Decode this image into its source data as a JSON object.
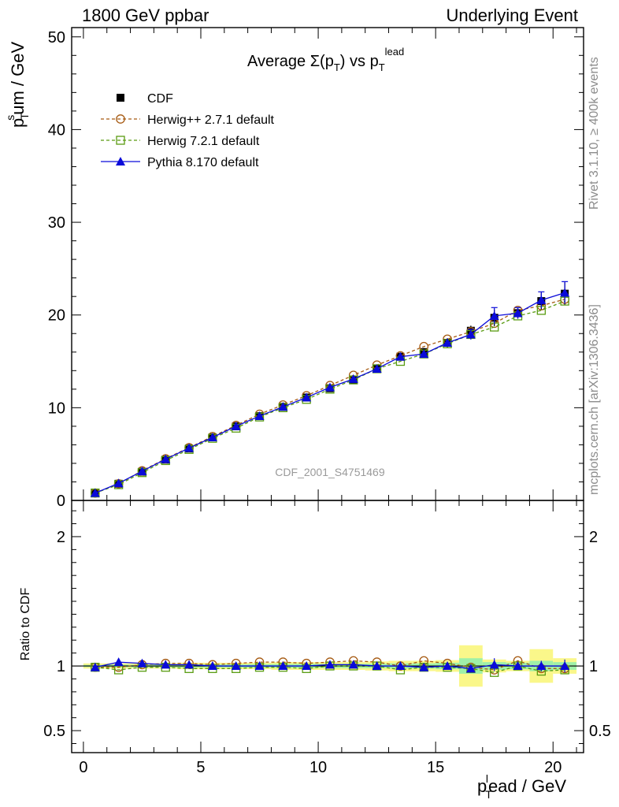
{
  "header": {
    "left": "1800 GeV ppbar",
    "right": "Underlying Event"
  },
  "side_labels": {
    "rivet": "Rivet 3.1.10, ≥ 400k events",
    "mcplots": "mcplots.cern.ch [arXiv:1306.3436]"
  },
  "chart_data": [
    {
      "type": "line",
      "title_main": "Average Σ(p",
      "title_sub": "T",
      "title_mid": ") vs p",
      "title_sub2": "T",
      "title_sup": "lead",
      "ylabel": "p_T^sum / GeV",
      "xlim": [
        -0.5,
        21.3
      ],
      "ylim": [
        0,
        51
      ],
      "yticks": [
        0,
        10,
        20,
        30,
        40,
        50
      ],
      "watermark": "CDF_2001_S4751469",
      "legend_position": "top-left",
      "x": [
        0.5,
        1.5,
        2.5,
        3.5,
        4.5,
        5.5,
        6.5,
        7.5,
        8.5,
        9.5,
        10.5,
        11.5,
        12.5,
        13.5,
        14.5,
        15.5,
        16.5,
        17.5,
        18.5,
        19.5,
        20.5
      ],
      "series": [
        {
          "name": "CDF",
          "color": "#000000",
          "marker": "square-filled",
          "values": [
            0.8,
            1.8,
            3.1,
            4.4,
            5.6,
            6.8,
            8.0,
            9.1,
            10.1,
            11.1,
            12.1,
            13.0,
            14.2,
            15.5,
            16.0,
            17.0,
            18.3,
            19.7,
            20.2,
            21.5,
            22.3
          ],
          "errors": [
            0.05,
            0.08,
            0.1,
            0.12,
            0.14,
            0.16,
            0.18,
            0.2,
            0.22,
            0.24,
            0.28,
            0.3,
            0.35,
            0.4,
            0.45,
            0.5,
            0.55,
            0.9,
            0.6,
            0.9,
            1.2
          ]
        },
        {
          "name": "Herwig++ 2.7.1 default",
          "color": "#a65a12",
          "marker": "circle-open",
          "dash": true,
          "values": [
            0.8,
            1.8,
            3.2,
            4.5,
            5.7,
            6.9,
            8.1,
            9.3,
            10.3,
            11.3,
            12.4,
            13.5,
            14.6,
            15.6,
            16.6,
            17.4,
            18.2,
            19.1,
            20.5,
            21.0,
            21.7
          ]
        },
        {
          "name": "Herwig 7.2.1 default",
          "color": "#5a9c12",
          "marker": "square-open",
          "dash": true,
          "values": [
            0.8,
            1.7,
            3.0,
            4.3,
            5.5,
            6.7,
            7.8,
            9.0,
            10.0,
            10.9,
            12.0,
            13.0,
            14.2,
            15.0,
            15.8,
            16.9,
            17.9,
            18.7,
            19.9,
            20.5,
            21.5
          ]
        },
        {
          "name": "Pythia 8.170 default",
          "color": "#0a0ad9",
          "marker": "triangle-filled",
          "values": [
            0.8,
            1.85,
            3.15,
            4.45,
            5.65,
            6.8,
            8.0,
            9.1,
            10.1,
            11.1,
            12.2,
            13.1,
            14.2,
            15.5,
            15.8,
            17.0,
            17.9,
            19.9,
            20.2,
            21.6,
            22.4
          ]
        }
      ]
    },
    {
      "type": "line",
      "ylabel": "Ratio to CDF",
      "xlabel": "p_T^lead / GeV",
      "xlim": [
        -0.5,
        21.3
      ],
      "ylim": [
        0.33,
        2.28
      ],
      "yticks": [
        0.5,
        1,
        2
      ],
      "xticks": [
        0,
        5,
        10,
        15,
        20
      ],
      "band_inner_color": "#9ff0a8",
      "band_outer_color": "#faf78a",
      "band_inner": [
        0.008,
        0.01,
        0.01,
        0.01,
        0.012,
        0.012,
        0.012,
        0.014,
        0.015,
        0.016,
        0.015,
        0.016,
        0.017,
        0.02,
        0.02,
        0.025,
        0.06,
        0.03,
        0.025,
        0.04,
        0.03
      ],
      "band_outer": [
        0.02,
        0.02,
        0.02,
        0.02,
        0.025,
        0.025,
        0.025,
        0.025,
        0.03,
        0.03,
        0.03,
        0.03,
        0.035,
        0.04,
        0.04,
        0.045,
        0.16,
        0.05,
        0.04,
        0.13,
        0.06
      ],
      "series": [
        {
          "name": "Herwig++ 2.7.1 default",
          "color": "#a65a12",
          "marker": "circle-open",
          "dash": true,
          "values": [
            0.99,
            0.99,
            1.01,
            1.02,
            1.02,
            1.01,
            1.02,
            1.03,
            1.03,
            1.02,
            1.03,
            1.04,
            1.03,
            1.0,
            1.04,
            1.02,
            0.99,
            0.97,
            1.04,
            0.98,
            0.98
          ]
        },
        {
          "name": "Herwig 7.2.1 default",
          "color": "#5a9c12",
          "marker": "square-open",
          "dash": true,
          "values": [
            0.99,
            0.97,
            0.99,
            0.99,
            0.98,
            0.98,
            0.98,
            0.99,
            0.99,
            0.98,
            1.0,
            1.0,
            1.0,
            0.97,
            0.99,
            0.99,
            0.98,
            0.95,
            1.0,
            0.96,
            0.97
          ]
        },
        {
          "name": "Pythia 8.170 default",
          "color": "#0a0ad9",
          "marker": "triangle-filled",
          "values": [
            0.99,
            1.03,
            1.02,
            1.01,
            1.01,
            1.0,
            1.0,
            1.0,
            1.0,
            1.0,
            1.01,
            1.01,
            1.0,
            1.0,
            0.99,
            1.0,
            0.98,
            1.01,
            1.0,
            1.0,
            1.0
          ],
          "errors": [
            0.01,
            0.01,
            0.01,
            0.01,
            0.01,
            0.01,
            0.01,
            0.01,
            0.01,
            0.01,
            0.01,
            0.01,
            0.01,
            0.01,
            0.01,
            0.01,
            0.03,
            0.05,
            0.02,
            0.04,
            0.05
          ]
        }
      ]
    }
  ]
}
